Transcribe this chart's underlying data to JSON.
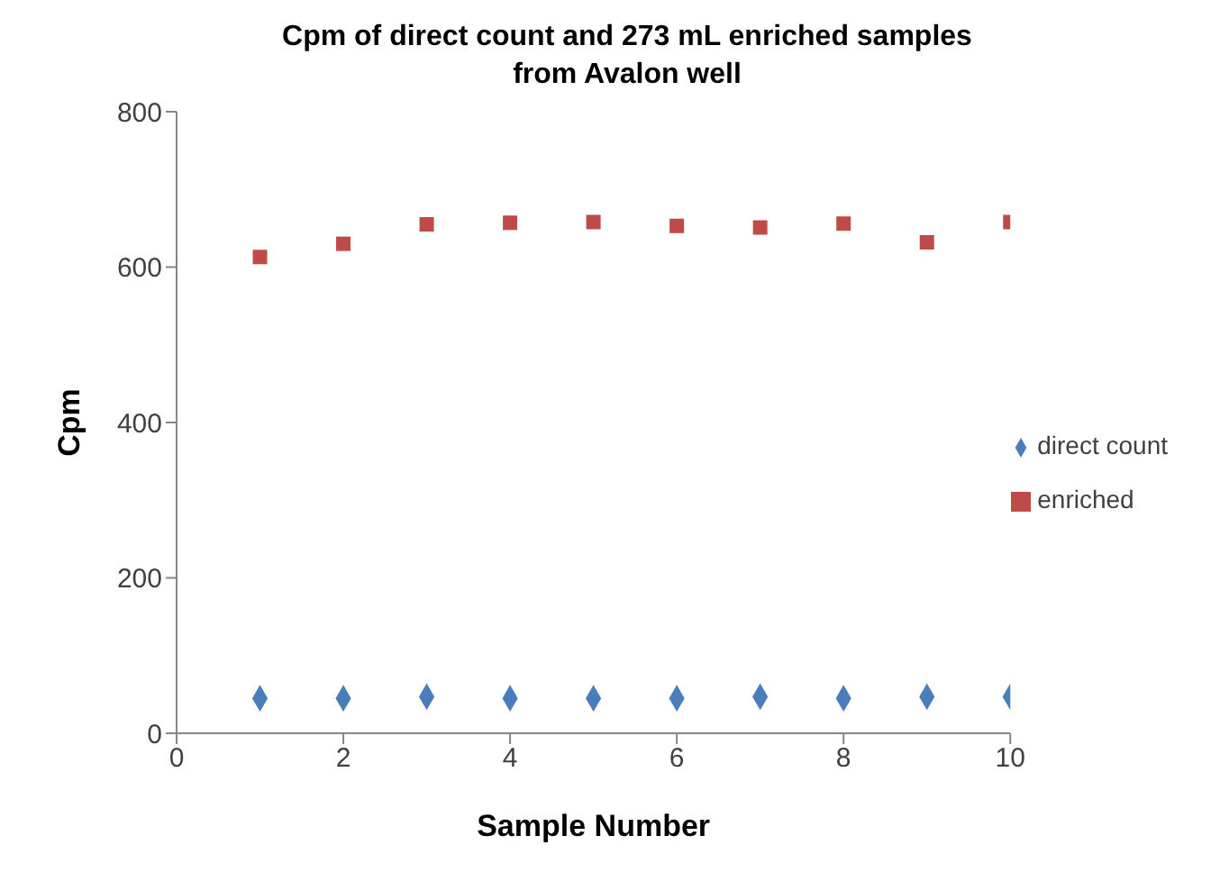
{
  "chart_data": {
    "type": "scatter",
    "title": "Cpm of direct count and 273 mL enriched samples from Avalon well",
    "xlabel": "Sample Number",
    "ylabel": "Cpm",
    "x": [
      1,
      2,
      3,
      4,
      5,
      6,
      7,
      8,
      9,
      10
    ],
    "series": [
      {
        "name": "direct count",
        "color": "#4a7ebb",
        "marker": "diamond",
        "values": [
          45,
          45,
          47,
          45,
          45,
          45,
          47,
          45,
          47,
          47
        ]
      },
      {
        "name": "enriched",
        "color": "#be4b48",
        "marker": "square",
        "values": [
          613,
          630,
          655,
          657,
          658,
          653,
          651,
          656,
          632,
          658
        ]
      }
    ],
    "xlim": [
      0,
      10
    ],
    "xticks": [
      0,
      2,
      4,
      6,
      8,
      10
    ],
    "ylim": [
      0,
      800
    ],
    "yticks": [
      0,
      200,
      400,
      600,
      800
    ],
    "grid": false,
    "legend": "right"
  }
}
